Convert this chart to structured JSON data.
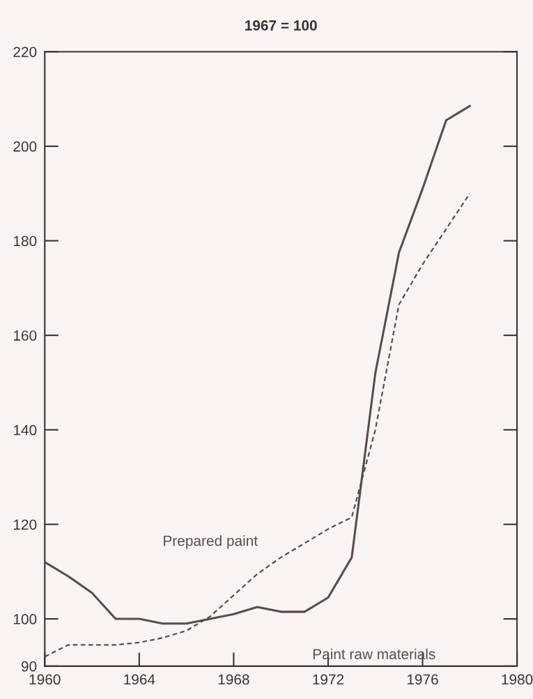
{
  "chart_data": {
    "type": "line",
    "title": "1967 = 100",
    "x": [
      1960,
      1961,
      1962,
      1963,
      1964,
      1965,
      1966,
      1967,
      1968,
      1969,
      1970,
      1971,
      1972,
      1973,
      1974,
      1975,
      1976,
      1977,
      1978
    ],
    "series": [
      {
        "name": "Paint raw materials",
        "color": "#5a4a4e",
        "line_style": "solid",
        "values": [
          112,
          109,
          105.5,
          100,
          100,
          99,
          99,
          100,
          101,
          102.5,
          101.5,
          101.5,
          104.5,
          113,
          152,
          177.5,
          191,
          205.5,
          208.5
        ]
      },
      {
        "name": "Prepared paint",
        "color": "#5a4a4e",
        "line_style": "dashed",
        "values": [
          92,
          94.5,
          94.5,
          94.5,
          95,
          96,
          97.5,
          100.5,
          105,
          109.5,
          113,
          116,
          119,
          121.5,
          140,
          166.5,
          175,
          182.5,
          190
        ]
      }
    ],
    "xlim": [
      1960,
      1980
    ],
    "xticks": [
      1960,
      1964,
      1968,
      1972,
      1976,
      1980
    ],
    "ylim": [
      90,
      220
    ],
    "yticks": [
      90,
      100,
      120,
      140,
      160,
      180,
      200,
      220
    ],
    "grid": false,
    "legend": false,
    "marker": "none"
  }
}
